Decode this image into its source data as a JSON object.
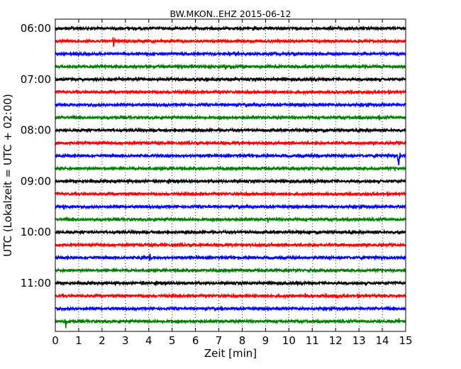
{
  "chart_data": {
    "type": "line",
    "title": "BW.MKON..EHZ 2015-06-12",
    "xlabel": "Zeit  [min]",
    "ylabel": "UTC (Lokalzeit = UTC + 02:00)",
    "xlim": [
      0,
      15
    ],
    "x_ticks": [
      0,
      1,
      2,
      3,
      4,
      5,
      6,
      7,
      8,
      9,
      10,
      11,
      12,
      13,
      14,
      15
    ],
    "x_tick_labels": [
      "0",
      "1",
      "2",
      "3",
      "4",
      "5",
      "6",
      "7",
      "8",
      "9",
      "10",
      "11",
      "12",
      "13",
      "14",
      "15"
    ],
    "y_tick_labels": [
      "06:00",
      "07:00",
      "08:00",
      "09:00",
      "10:00",
      "11:00"
    ],
    "grid": "vertical dotted",
    "trace_colors": [
      "#000000",
      "#ff0000",
      "#0000ff",
      "#008000"
    ],
    "traces": [
      {
        "start": "06:00",
        "color": "#000000",
        "events": []
      },
      {
        "start": "06:15",
        "color": "#ff0000",
        "events": [
          {
            "x": 2.5,
            "amp": 11
          }
        ]
      },
      {
        "start": "06:30",
        "color": "#0000ff",
        "events": []
      },
      {
        "start": "06:45",
        "color": "#008000",
        "events": [
          {
            "x": 7.3,
            "amp": 4
          }
        ]
      },
      {
        "start": "07:00",
        "color": "#000000",
        "events": []
      },
      {
        "start": "07:15",
        "color": "#ff0000",
        "events": []
      },
      {
        "start": "07:30",
        "color": "#0000ff",
        "events": []
      },
      {
        "start": "07:45",
        "color": "#008000",
        "events": [
          {
            "x": 13.85,
            "amp": 7
          }
        ]
      },
      {
        "start": "08:00",
        "color": "#000000",
        "events": []
      },
      {
        "start": "08:15",
        "color": "#ff0000",
        "events": []
      },
      {
        "start": "08:30",
        "color": "#0000ff",
        "events": [
          {
            "x": 11.2,
            "amp": 4
          },
          {
            "x": 14.7,
            "amp": 20
          }
        ]
      },
      {
        "start": "08:45",
        "color": "#008000",
        "events": []
      },
      {
        "start": "09:00",
        "color": "#000000",
        "events": []
      },
      {
        "start": "09:15",
        "color": "#ff0000",
        "events": []
      },
      {
        "start": "09:30",
        "color": "#0000ff",
        "events": [
          {
            "x": 0.35,
            "amp": 4
          }
        ]
      },
      {
        "start": "09:45",
        "color": "#008000",
        "events": [
          {
            "x": 9.1,
            "amp": 5
          }
        ]
      },
      {
        "start": "10:00",
        "color": "#000000",
        "events": []
      },
      {
        "start": "10:15",
        "color": "#ff0000",
        "events": []
      },
      {
        "start": "10:30",
        "color": "#0000ff",
        "events": [
          {
            "x": 3.7,
            "amp": 5
          },
          {
            "x": 4.05,
            "amp": 6
          }
        ]
      },
      {
        "start": "10:45",
        "color": "#008000",
        "events": [
          {
            "x": 10.0,
            "amp": 3
          }
        ]
      },
      {
        "start": "11:00",
        "color": "#000000",
        "events": []
      },
      {
        "start": "11:15",
        "color": "#ff0000",
        "events": [
          {
            "x": 8.0,
            "amp": 4
          },
          {
            "x": 10.7,
            "amp": 4
          },
          {
            "x": 12.05,
            "amp": 7
          }
        ]
      },
      {
        "start": "11:30",
        "color": "#0000ff",
        "events": [
          {
            "x": 7.1,
            "amp": 3
          }
        ]
      },
      {
        "start": "11:45",
        "color": "#008000",
        "events": [
          {
            "x": 0.45,
            "amp": 13
          },
          {
            "x": 14.7,
            "amp": 6
          }
        ]
      }
    ]
  }
}
